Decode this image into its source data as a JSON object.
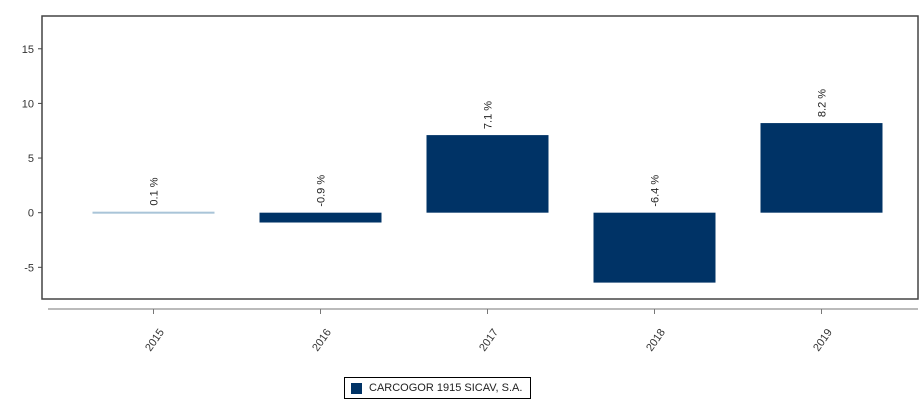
{
  "colors": {
    "bar": "#003366",
    "bar_2015": "#a9c4d8",
    "frame": "#444444",
    "axis": "#777777"
  },
  "legend": {
    "label": "CARCOGOR 1915 SICAV, S.A."
  },
  "chart_data": {
    "type": "bar",
    "categories": [
      "2015",
      "2016",
      "2017",
      "2018",
      "2019"
    ],
    "series": [
      {
        "name": "CARCOGOR 1915 SICAV, S.A.",
        "values": [
          0.1,
          -0.9,
          7.1,
          -6.4,
          8.2
        ]
      }
    ],
    "data_labels": [
      "0.1 %",
      "-0.9 %",
      "7.1 %",
      "-6.4 %",
      "8.2 %"
    ],
    "yticks": [
      -5,
      0,
      5,
      10,
      15
    ],
    "ylim": [
      -7.9,
      18
    ],
    "grid": false,
    "legend_position": "bottom-center",
    "xlabel": "",
    "ylabel": ""
  }
}
